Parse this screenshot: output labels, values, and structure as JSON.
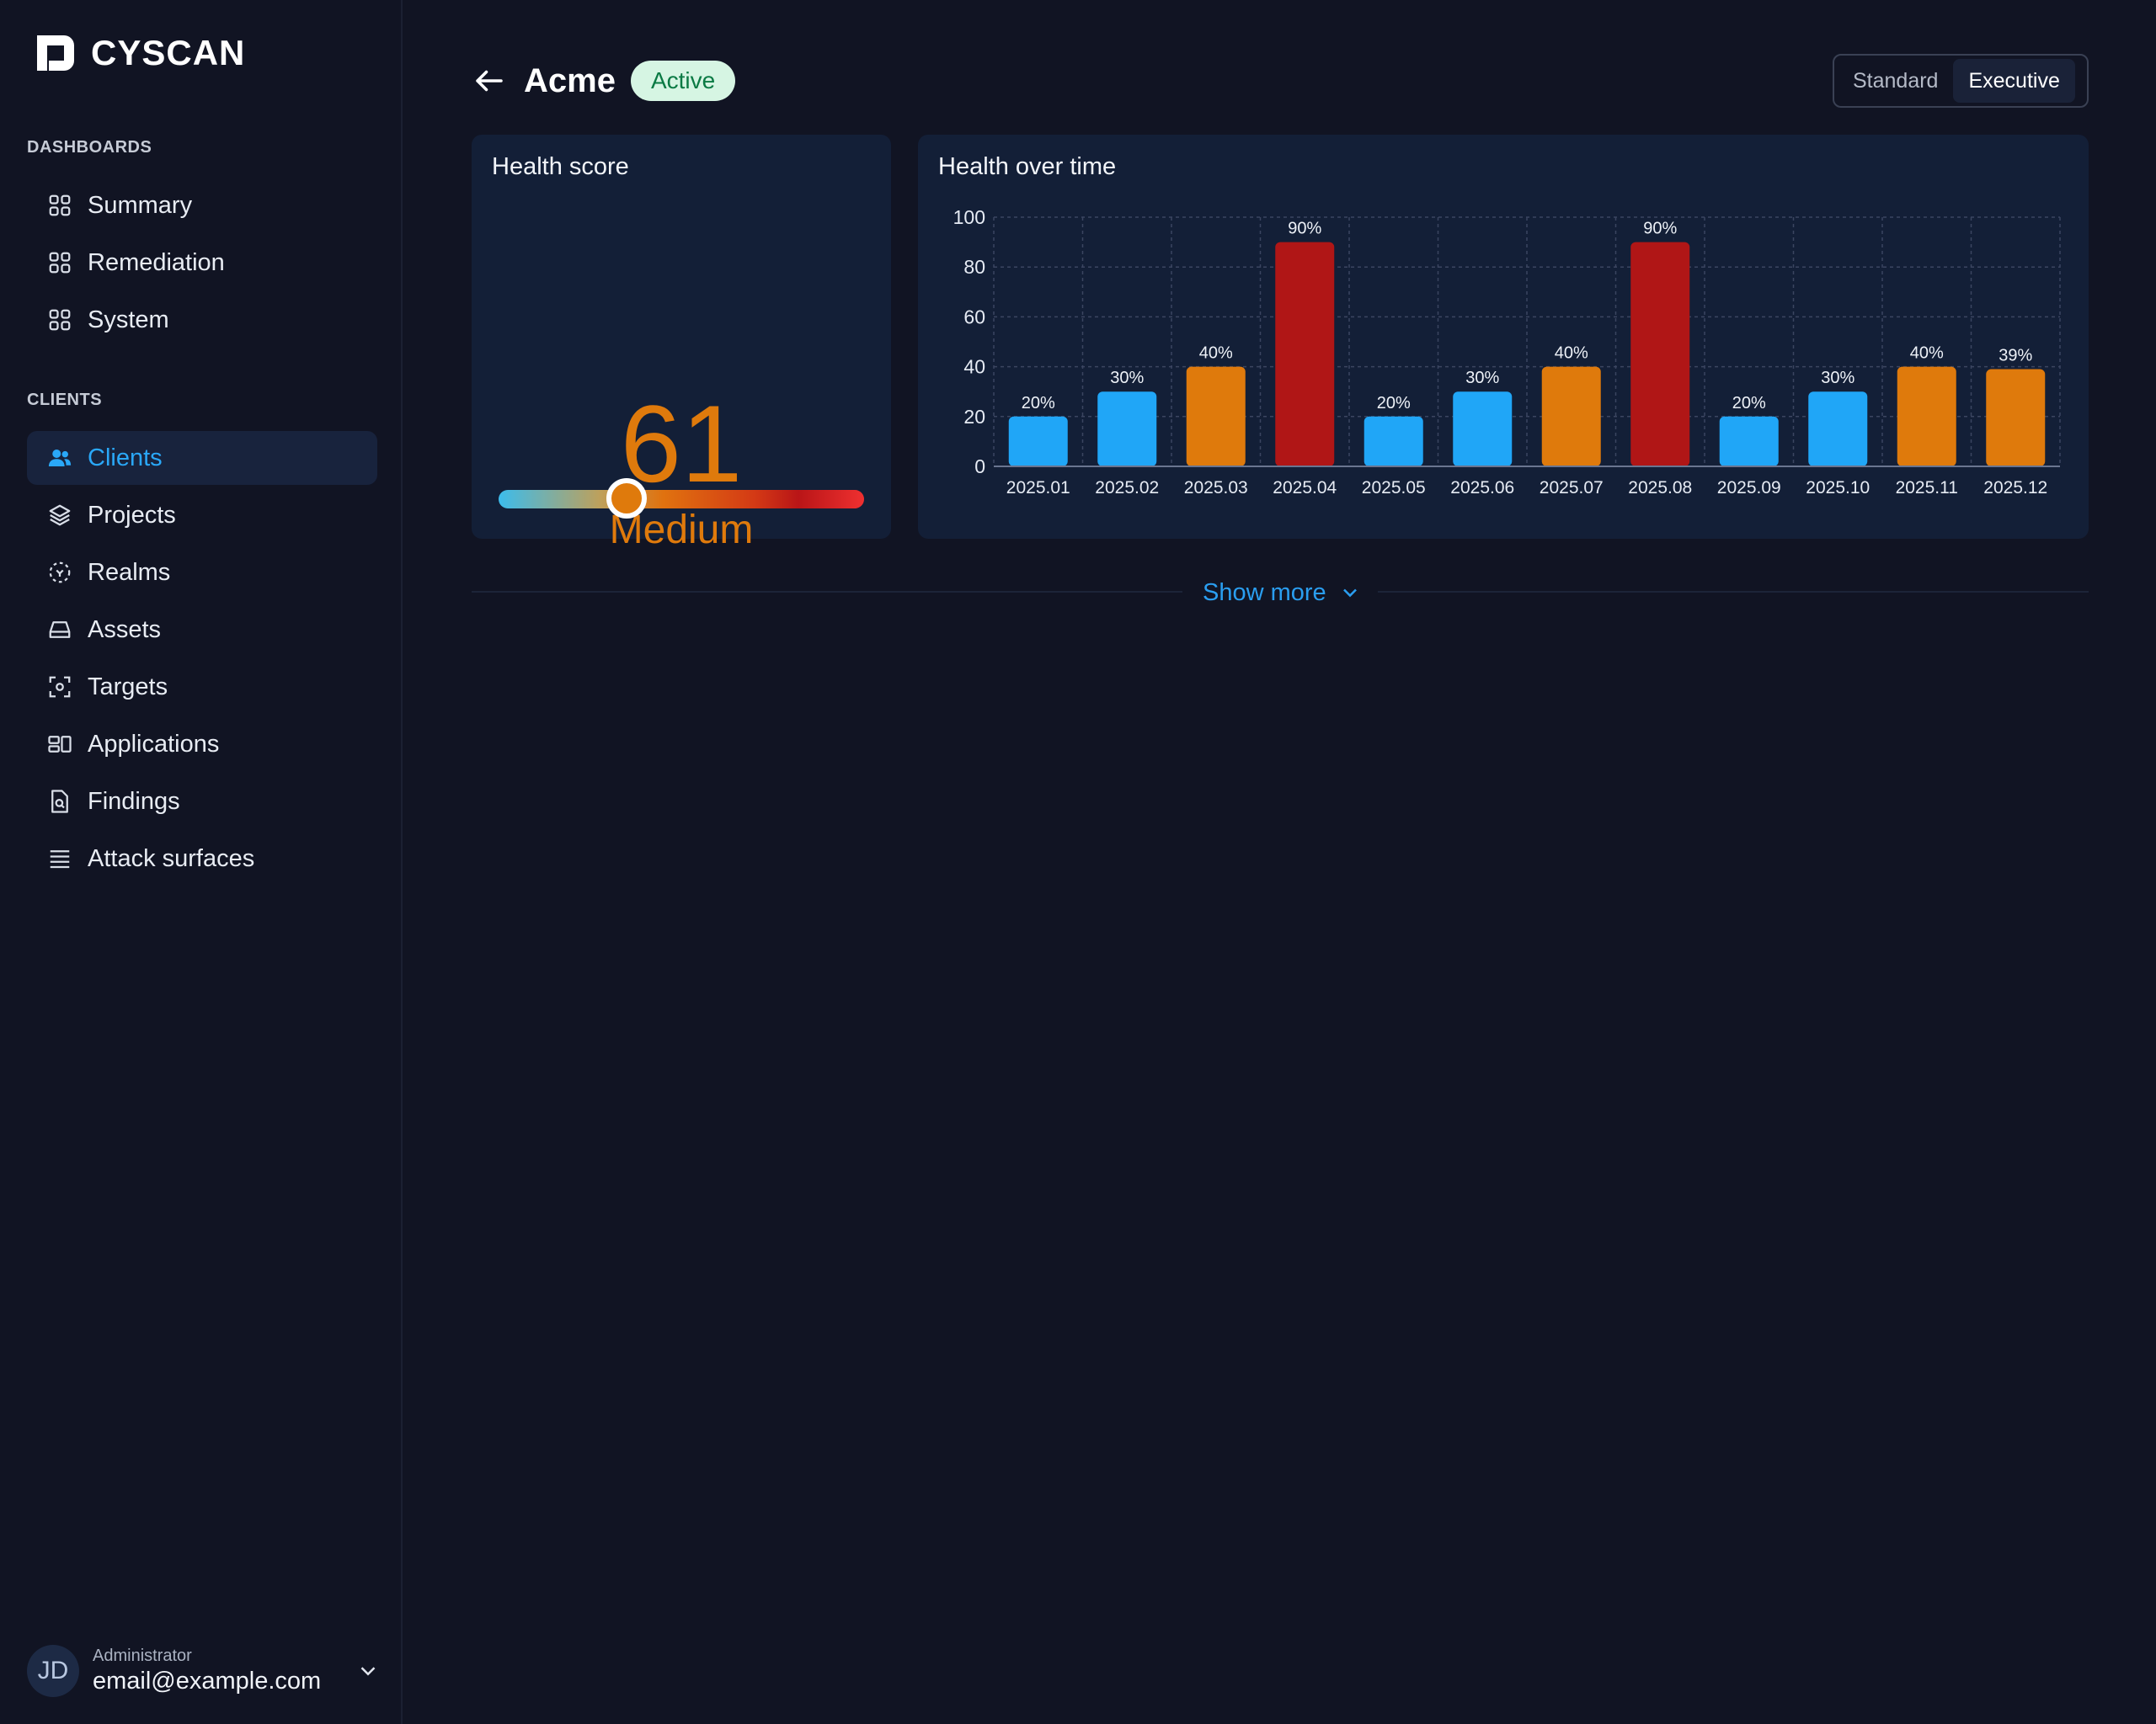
{
  "brand": {
    "name": "CYSCAN"
  },
  "sidebar": {
    "dashboards_label": "DASHBOARDS",
    "dashboards": [
      {
        "label": "Summary",
        "icon": "grid-icon"
      },
      {
        "label": "Remediation",
        "icon": "grid-icon"
      },
      {
        "label": "System",
        "icon": "grid-icon"
      }
    ],
    "clients_label": "CLIENTS",
    "clients": [
      {
        "label": "Clients",
        "icon": "users-icon",
        "active": true
      },
      {
        "label": "Projects",
        "icon": "layers-icon"
      },
      {
        "label": "Realms",
        "icon": "realm-icon"
      },
      {
        "label": "Assets",
        "icon": "drive-icon"
      },
      {
        "label": "Targets",
        "icon": "target-icon"
      },
      {
        "label": "Applications",
        "icon": "apps-icon"
      },
      {
        "label": "Findings",
        "icon": "file-search-icon"
      },
      {
        "label": "Attack surfaces",
        "icon": "list-icon"
      }
    ],
    "user": {
      "initials": "JD",
      "role": "Administrator",
      "email": "email@example.com"
    }
  },
  "header": {
    "title": "Acme",
    "status": "Active",
    "view_options": [
      "Standard",
      "Executive"
    ],
    "selected_view": "Executive"
  },
  "health_score": {
    "title": "Health score",
    "value": "61",
    "level": "Medium",
    "gauge_level": 0.35
  },
  "health_over_time": {
    "title": "Health over time"
  },
  "chart_data": {
    "type": "bar",
    "title": "Health over time",
    "categories": [
      "2025.01",
      "2025.02",
      "2025.03",
      "2025.04",
      "2025.05",
      "2025.06",
      "2025.07",
      "2025.08",
      "2025.09",
      "2025.10",
      "2025.11",
      "2025.12"
    ],
    "values": [
      20,
      30,
      40,
      90,
      20,
      30,
      40,
      90,
      20,
      30,
      40,
      39
    ],
    "data_labels": [
      "20%",
      "30%",
      "40%",
      "90%",
      "20%",
      "30%",
      "40%",
      "90%",
      "20%",
      "30%",
      "40%",
      "39%"
    ],
    "bar_colors": [
      "#20a6f7",
      "#20a6f7",
      "#df7a0c",
      "#b01616",
      "#20a6f7",
      "#20a6f7",
      "#df7a0c",
      "#b01616",
      "#20a6f7",
      "#20a6f7",
      "#df7a0c",
      "#df7a0c"
    ],
    "yticks": [
      0,
      20,
      40,
      60,
      80,
      100
    ],
    "ylim": [
      0,
      100
    ],
    "grid": true
  },
  "show_more": {
    "label": "Show more"
  },
  "colors": {
    "background": "#111423",
    "card": "#131f37",
    "accent": "#2aa8f8",
    "medium": "#df7a0c",
    "high": "#b01616"
  }
}
